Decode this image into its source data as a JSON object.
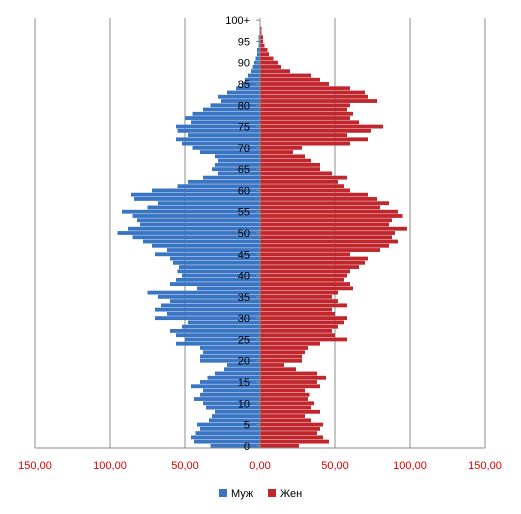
{
  "chart_data": {
    "type": "bar",
    "orientation": "horizontal",
    "x_tick_labels": [
      "150,00",
      "100,00",
      "50,00",
      "0,00",
      "50,00",
      "100,00",
      "150,00"
    ],
    "x_tick_values": [
      -150,
      -100,
      -50,
      0,
      50,
      100,
      150
    ],
    "xlim": [
      -150,
      150
    ],
    "y_tick_labels": [
      "0",
      "5",
      "10",
      "15",
      "20",
      "25",
      "30",
      "35",
      "40",
      "45",
      "50",
      "55",
      "60",
      "65",
      "70",
      "75",
      "80",
      "85",
      "90",
      "95",
      "100+"
    ],
    "y_tick_values": [
      0,
      5,
      10,
      15,
      20,
      25,
      30,
      35,
      40,
      45,
      50,
      55,
      60,
      65,
      70,
      75,
      80,
      85,
      90,
      95,
      100
    ],
    "ylim": [
      0,
      100
    ],
    "grid": "vertical",
    "legend_position": "bottom",
    "categories": [
      0,
      1,
      2,
      3,
      4,
      5,
      6,
      7,
      8,
      9,
      10,
      11,
      12,
      13,
      14,
      15,
      16,
      17,
      18,
      19,
      20,
      21,
      22,
      23,
      24,
      25,
      26,
      27,
      28,
      29,
      30,
      31,
      32,
      33,
      34,
      35,
      36,
      37,
      38,
      39,
      40,
      41,
      42,
      43,
      44,
      45,
      46,
      47,
      48,
      49,
      50,
      51,
      52,
      53,
      54,
      55,
      56,
      57,
      58,
      59,
      60,
      61,
      62,
      63,
      64,
      65,
      66,
      67,
      68,
      69,
      70,
      71,
      72,
      73,
      74,
      75,
      76,
      77,
      78,
      79,
      80,
      81,
      82,
      83,
      84,
      85,
      86,
      87,
      88,
      89,
      90,
      91,
      92,
      93,
      94,
      95,
      96,
      97,
      98,
      99,
      100
    ],
    "series": [
      {
        "name": "Муж",
        "color": "#3a75c4",
        "values": [
          33,
          44,
          46,
          43,
          40,
          42,
          34,
          32,
          30,
          36,
          38,
          44,
          40,
          38,
          46,
          40,
          35,
          30,
          24,
          22,
          40,
          40,
          38,
          40,
          56,
          50,
          56,
          60,
          52,
          48,
          70,
          62,
          70,
          66,
          60,
          68,
          75,
          42,
          60,
          56,
          52,
          55,
          54,
          58,
          60,
          70,
          62,
          72,
          78,
          85,
          95,
          88,
          80,
          82,
          85,
          92,
          75,
          68,
          84,
          86,
          72,
          55,
          48,
          38,
          28,
          32,
          30,
          28,
          30,
          40,
          45,
          52,
          56,
          48,
          55,
          56,
          46,
          50,
          45,
          38,
          33,
          26,
          28,
          22,
          16,
          12,
          10,
          8,
          6,
          5,
          4,
          3,
          2,
          2,
          1,
          1,
          1,
          0,
          0,
          0,
          0
        ]
      },
      {
        "name": "Жен",
        "color": "#c0272d",
        "values": [
          26,
          46,
          42,
          38,
          40,
          42,
          34,
          30,
          40,
          34,
          36,
          32,
          33,
          30,
          40,
          38,
          44,
          38,
          24,
          16,
          28,
          28,
          30,
          32,
          40,
          58,
          50,
          48,
          52,
          56,
          58,
          50,
          48,
          58,
          52,
          48,
          52,
          62,
          60,
          56,
          58,
          60,
          66,
          70,
          72,
          60,
          80,
          86,
          92,
          88,
          90,
          98,
          86,
          88,
          95,
          92,
          80,
          86,
          78,
          72,
          60,
          56,
          52,
          58,
          48,
          40,
          40,
          34,
          30,
          22,
          28,
          60,
          72,
          58,
          74,
          82,
          66,
          60,
          62,
          58,
          60,
          78,
          72,
          70,
          60,
          46,
          40,
          34,
          20,
          14,
          12,
          9,
          6,
          5,
          3,
          2,
          2,
          1,
          1,
          0,
          0
        ]
      }
    ]
  }
}
